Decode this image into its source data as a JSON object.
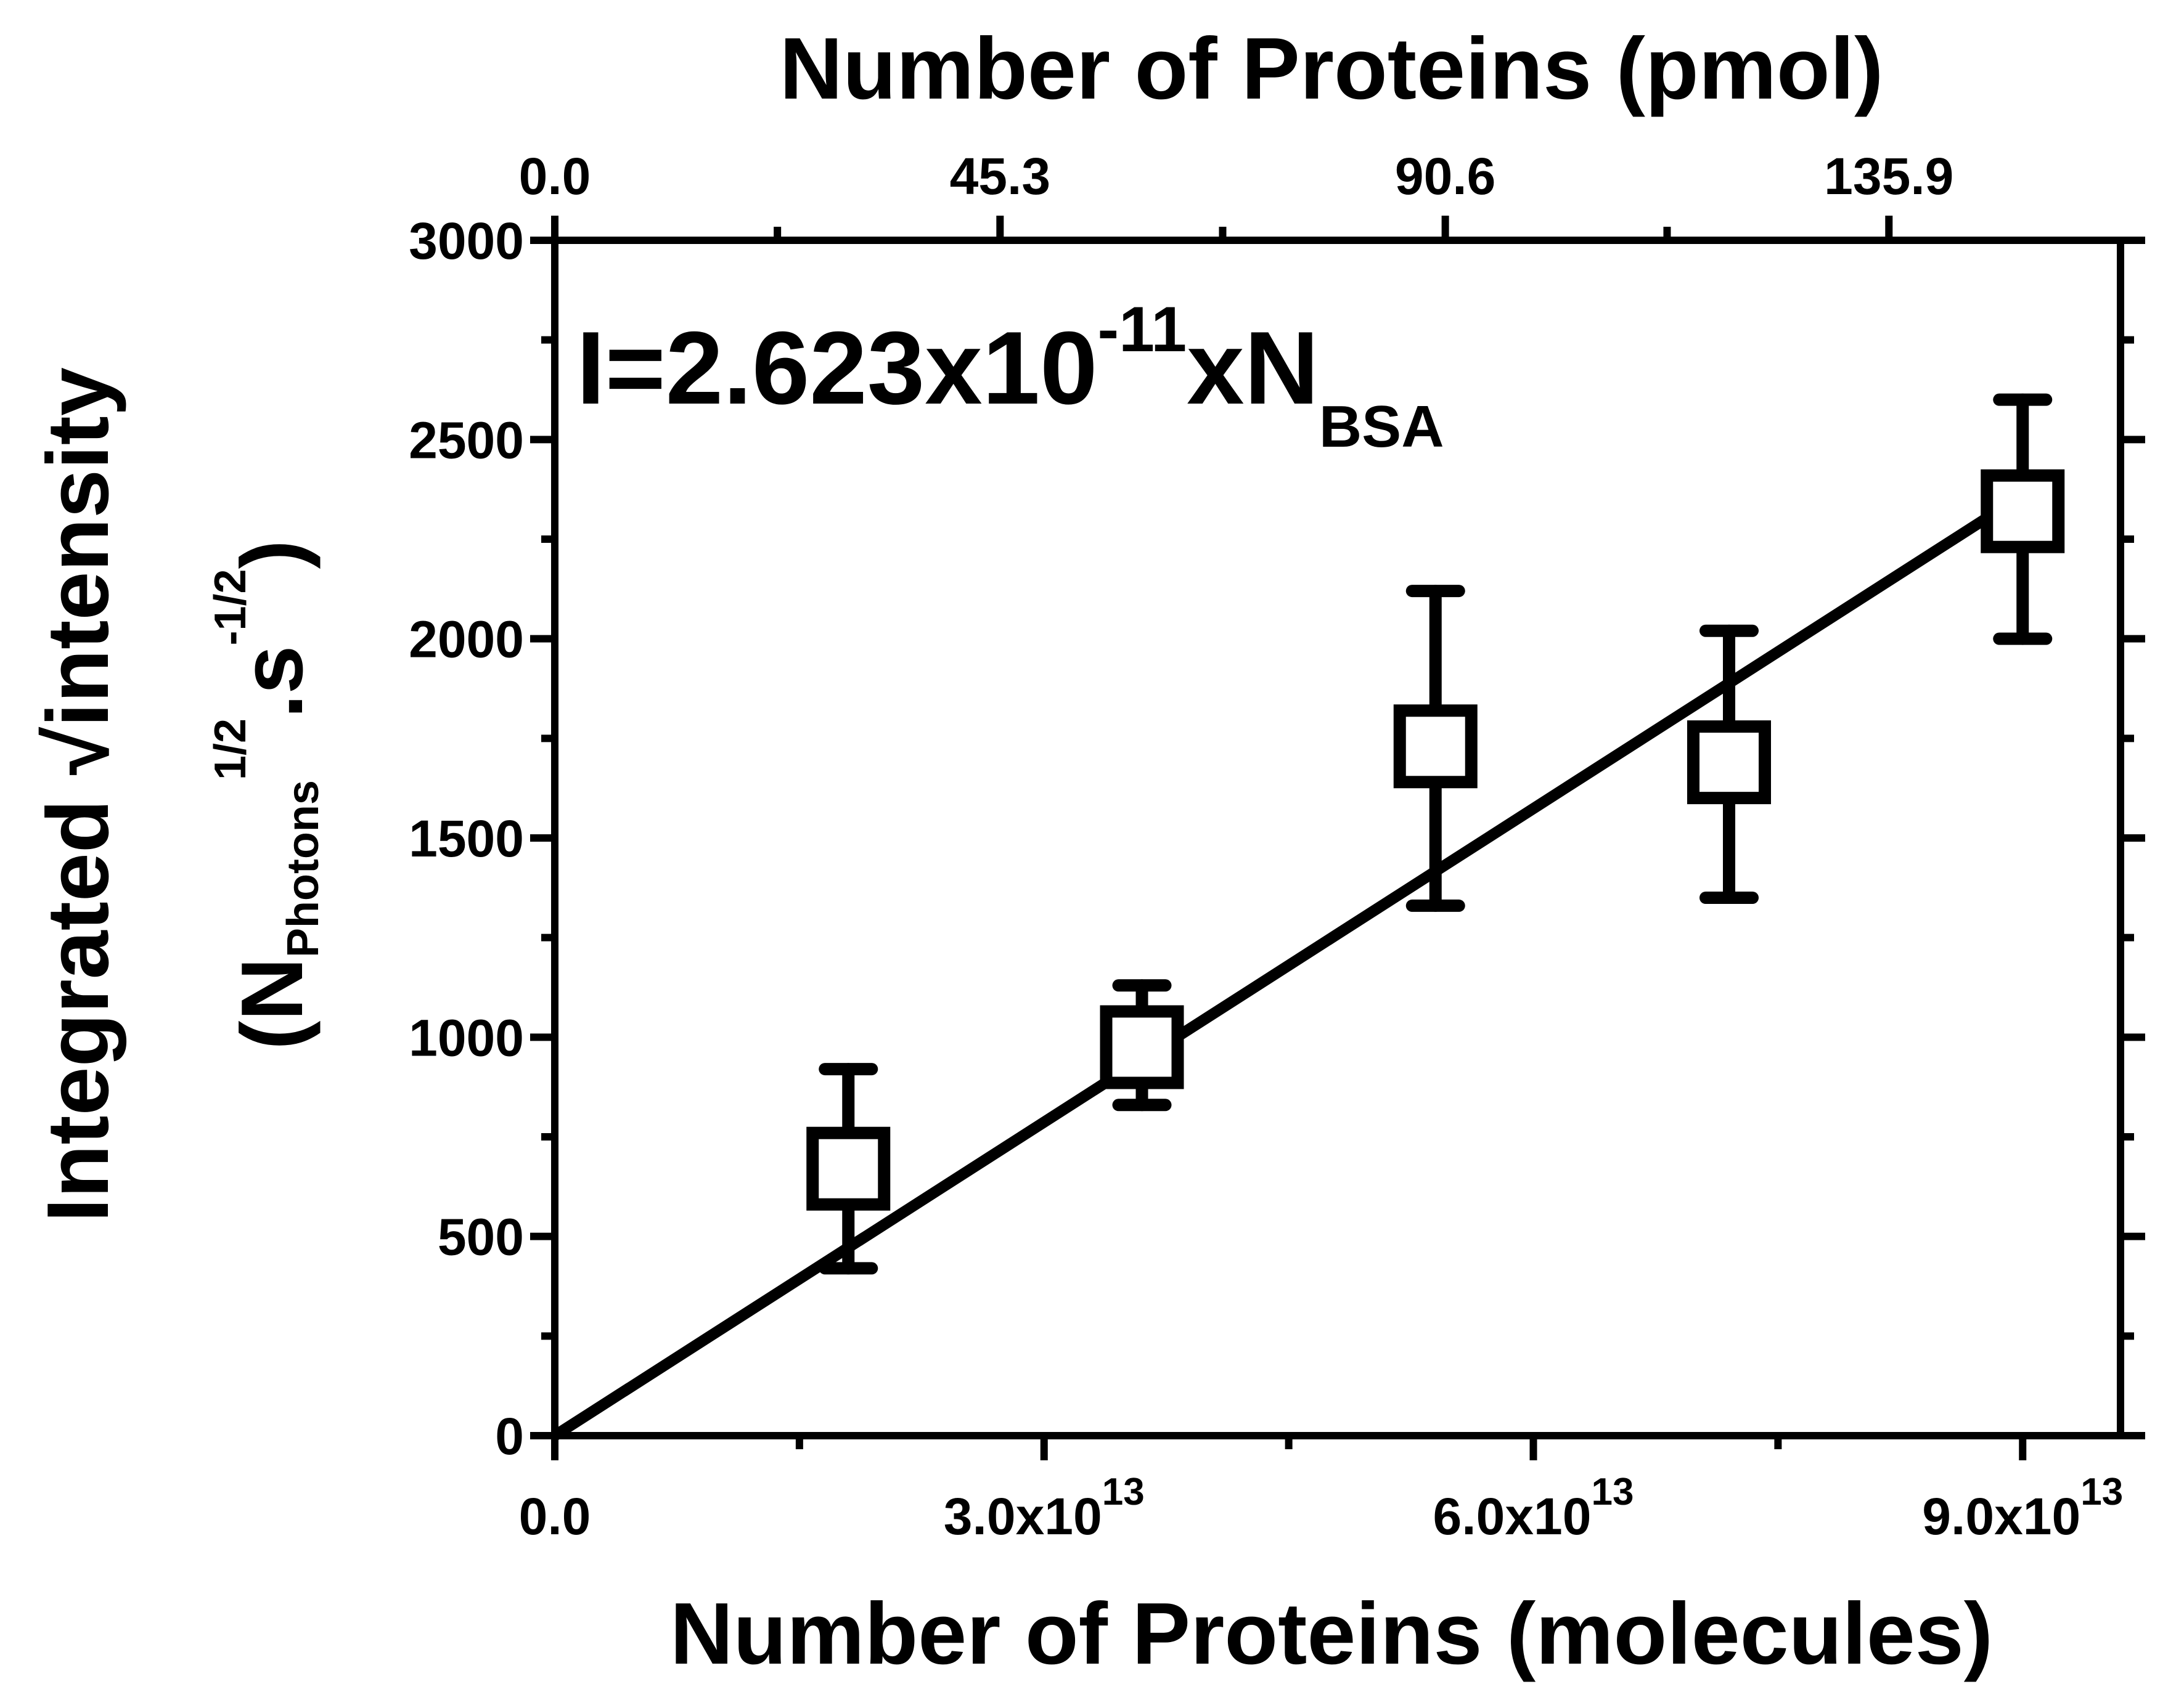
{
  "chart_data": {
    "type": "scatter",
    "title": "",
    "xlabel": "Number of Proteins (molecules)",
    "x2label": "Number of Proteins (pmol)",
    "ylabel_main": "Integrated √intensity",
    "ylabel_unit": "(N",
    "ylabel_sub": "Photons",
    "ylabel_sup": "1/2",
    "ylabel_mid": ".s",
    "ylabel_sup2": "-1/2",
    "ylabel_close": ")",
    "xlim": [
      0,
      96000000000000.0
    ],
    "ylim": [
      0,
      3000
    ],
    "x_ticks": [
      0,
      30000000000000.0,
      60000000000000.0,
      90000000000000.0
    ],
    "x_tick_labels": [
      {
        "mantissa": "0.0",
        "exp": ""
      },
      {
        "mantissa": "3.0x10",
        "exp": "13"
      },
      {
        "mantissa": "6.0x10",
        "exp": "13"
      },
      {
        "mantissa": "9.0x10",
        "exp": "13"
      }
    ],
    "x_minor_ticks": [
      15000000000000.0,
      45000000000000.0,
      75000000000000.0
    ],
    "x2_ticks": [
      0,
      27300000000000.0,
      54600000000000.0,
      81800000000000.0
    ],
    "x2_tick_labels": [
      "0.0",
      "45.3",
      "90.6",
      "135.9"
    ],
    "y_ticks": [
      0,
      500,
      1000,
      1500,
      2000,
      2500,
      3000
    ],
    "y_tick_labels": [
      "0",
      "500",
      "1000",
      "1500",
      "2000",
      "2500",
      "3000"
    ],
    "y_minor_ticks": [
      250,
      750,
      1250,
      1750,
      2250,
      2750
    ],
    "series": [
      {
        "marker": "open-square",
        "x": [
          18000000000000.0,
          36000000000000.0,
          54000000000000.0,
          72000000000000.0,
          90000000000000.0
        ],
        "y": [
          670,
          975,
          1730,
          1690,
          2320
        ],
        "y_err_low": [
          420,
          830,
          1330,
          1350,
          2000
        ],
        "y_err_high": [
          920,
          1130,
          2120,
          2020,
          2600
        ]
      }
    ],
    "fit": {
      "equation_main": "I=2.623x10",
      "equation_exp": "-11",
      "equation_var": "xN",
      "equation_sub": "BSA",
      "slope": 2.623e-11,
      "intercept": 0,
      "x_range": [
        0,
        91000000000000.0
      ]
    },
    "grid": false,
    "legend": "none",
    "color": "#000000"
  }
}
